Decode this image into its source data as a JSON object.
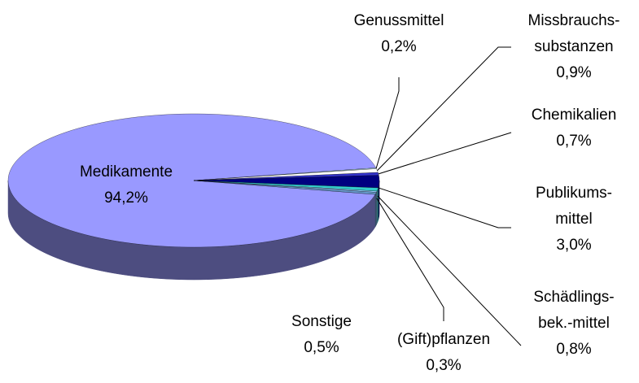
{
  "chart_data": {
    "type": "pie",
    "categories": [
      "Medikamente",
      "Genussmittel",
      "Missbrauchs-\nsubstanzen",
      "Chemikalien",
      "Publikums-\nmittel",
      "Schädlings-\nbek.-mittel",
      "(Gift)pflanzen",
      "Sonstige"
    ],
    "values": [
      94.2,
      0.2,
      0.9,
      0.7,
      3.0,
      0.8,
      0.3,
      0.5
    ],
    "value_labels": [
      "94,2%",
      "0,2%",
      "0,9%",
      "0,7%",
      "3,0%",
      "0,8%",
      "0,3%",
      "0,5%"
    ],
    "colors": [
      "#9999ff",
      "#ccffff",
      "#ffffff",
      "#3333cc",
      "#000080",
      "#33cccc",
      "#99ccff",
      "#6699cc"
    ]
  }
}
